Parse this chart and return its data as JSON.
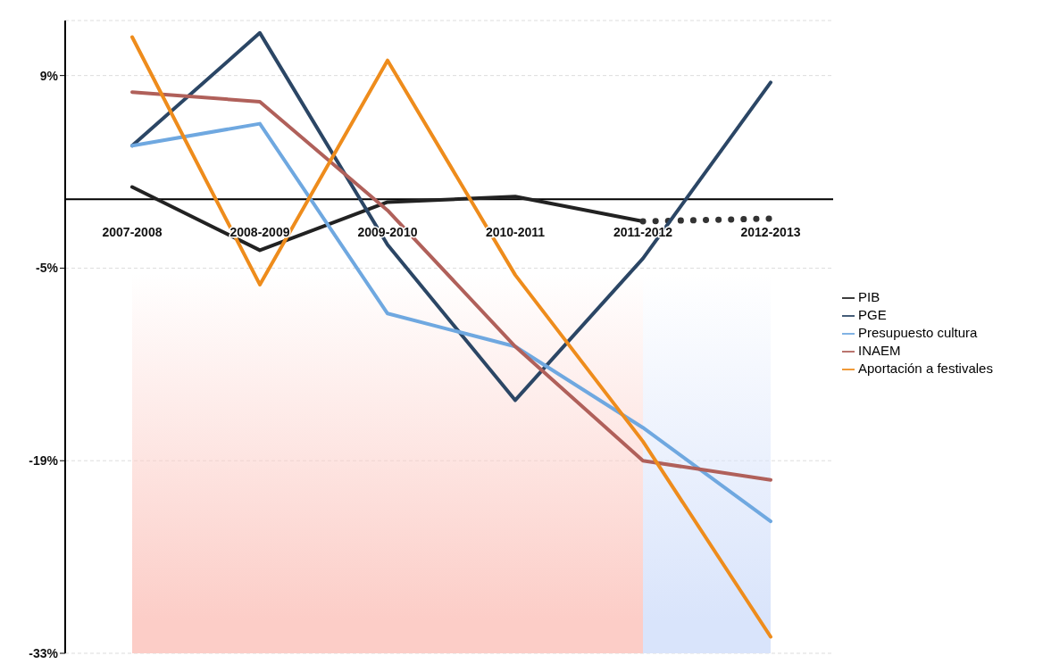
{
  "chart_data": {
    "type": "line",
    "categories": [
      "2007-2008",
      "2008-2009",
      "2009-2010",
      "2010-2011",
      "2011-2012",
      "2012-2013"
    ],
    "series": [
      {
        "name": "PIB",
        "color": "#222222",
        "values": [
          0.9,
          -3.7,
          -0.2,
          0.2,
          -1.6,
          null
        ]
      },
      {
        "color": "#333333",
        "line_style": "dotted",
        "values": [
          null,
          null,
          null,
          null,
          -1.6,
          -1.4
        ]
      },
      {
        "name": "PGE",
        "color": "#2b4665",
        "values": [
          3.9,
          12.1,
          -3.3,
          -14.6,
          -4.3,
          8.5
        ]
      },
      {
        "name": "Presupuesto cultura",
        "color": "#6fa8e0",
        "values": [
          3.9,
          5.5,
          -8.3,
          -10.7,
          -16.6,
          -23.4
        ]
      },
      {
        "name": "INAEM",
        "color": "#b0605a",
        "values": [
          7.8,
          7.1,
          -0.8,
          -10.7,
          -19.0,
          -20.4
        ]
      },
      {
        "name": "Aportación a festivales",
        "color": "#ee8c1c",
        "values": [
          11.8,
          -6.2,
          10.1,
          -5.5,
          -17.6,
          -31.8
        ]
      }
    ],
    "ylim": [
      -33,
      13
    ],
    "yticks": [
      {
        "value": 9,
        "label": "9%"
      },
      {
        "value": -5,
        "label": "-5%"
      },
      {
        "value": -19,
        "label": "-19%"
      },
      {
        "value": -33,
        "label": "-33%"
      }
    ],
    "bands": [
      {
        "axis": "x",
        "from": "2007-2008",
        "to": "2011-2012",
        "color": "#fccdc7"
      },
      {
        "axis": "x",
        "from": "2011-2012",
        "to": "2012-2013",
        "color": "#d9e4fb"
      }
    ],
    "grid": "y",
    "legend": "right",
    "line_style": "solid",
    "marker": "none"
  }
}
